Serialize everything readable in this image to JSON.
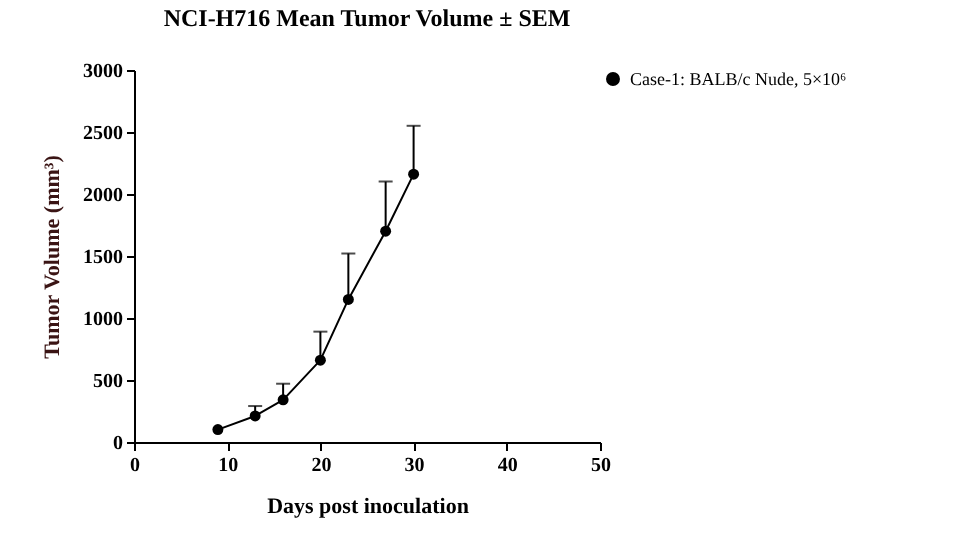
{
  "chart_data": {
    "type": "line",
    "title": "NCI-H716 Mean Tumor Volume ± SEM",
    "xlabel": "Days post inoculation",
    "ylabel": "Tumor Volume (mm³)",
    "x": [
      9,
      13,
      16,
      20,
      23,
      27,
      30
    ],
    "series": [
      {
        "name": "Case-1: BALB/c Nude, 5×10⁶",
        "color": "#000000",
        "values": [
          100,
          210,
          340,
          660,
          1150,
          1700,
          2160
        ],
        "errors": [
          null,
          [
            210,
            290
          ],
          [
            340,
            470
          ],
          [
            660,
            890
          ],
          [
            1150,
            1520
          ],
          [
            1700,
            2100
          ],
          [
            2160,
            2550
          ]
        ]
      }
    ],
    "xlim": [
      0,
      50
    ],
    "xticks": [
      0,
      10,
      20,
      30,
      40,
      50
    ],
    "ylim": [
      0,
      3000
    ],
    "yticks": [
      0,
      500,
      1000,
      1500,
      2000,
      2500,
      3000
    ],
    "legend": "right",
    "marker": "circle"
  }
}
